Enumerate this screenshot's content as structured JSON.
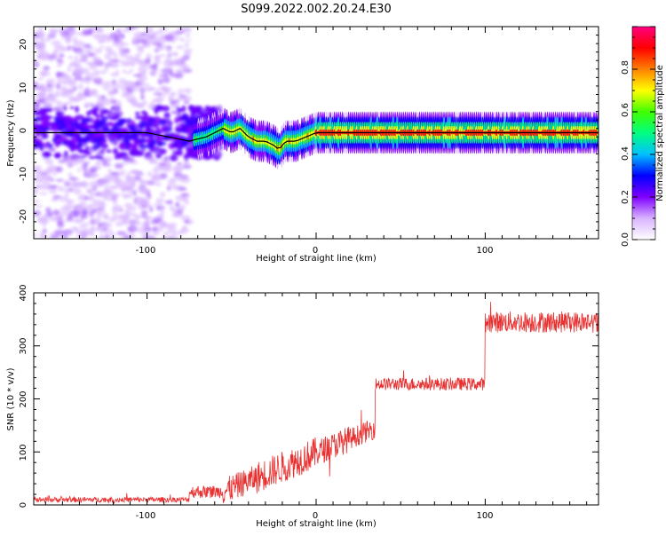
{
  "title": "S099.2022.002.20.24.E30",
  "colorbar": {
    "label": "Normalized spectral amplitude",
    "ticks": [
      "0.0",
      "0.2",
      "0.4",
      "0.6",
      "0.8"
    ],
    "colors": [
      "#ffffff",
      "#d9b3ff",
      "#7f00ff",
      "#0000ff",
      "#00c0ff",
      "#00ff80",
      "#40ff00",
      "#ffff00",
      "#ff8000",
      "#ff0000",
      "#ff0080"
    ]
  },
  "chart_data": [
    {
      "type": "heatmap",
      "xlabel": "Height of straight line (km)",
      "ylabel": "Frequency (Hz)",
      "xlim": [
        -167,
        167
      ],
      "ylim": [
        -25,
        25
      ],
      "xticks": [
        "-100",
        "0",
        "100"
      ],
      "yticks": [
        "20",
        "10",
        "0",
        "-10",
        "-20"
      ],
      "clim": [
        0,
        1
      ],
      "ridge": [
        [
          -167,
          0
        ],
        [
          -100,
          0
        ],
        [
          -75,
          -2
        ],
        [
          -65,
          -1
        ],
        [
          -60,
          0
        ],
        [
          -55,
          1
        ],
        [
          -50,
          0
        ],
        [
          -45,
          1
        ],
        [
          -40,
          -1
        ],
        [
          -35,
          -2
        ],
        [
          -30,
          -2
        ],
        [
          -25,
          -3
        ],
        [
          -22,
          -4
        ],
        [
          -18,
          -2
        ],
        [
          -12,
          -2
        ],
        [
          -6,
          -1
        ],
        [
          0,
          0
        ],
        [
          10,
          0
        ],
        [
          50,
          0
        ],
        [
          100,
          0
        ],
        [
          167,
          0
        ]
      ]
    },
    {
      "type": "line",
      "xlabel": "Height of straight line (km)",
      "ylabel": "SNR (10 * v/v)",
      "xlim": [
        -167,
        167
      ],
      "ylim": [
        0,
        400
      ],
      "xticks": [
        "-100",
        "0",
        "100"
      ],
      "yticks": [
        "400",
        "300",
        "200",
        "100",
        "0"
      ],
      "color": "#e83030",
      "segments": [
        {
          "x0": -167,
          "x1": -75,
          "mean": 10,
          "noise": 5
        },
        {
          "x0": -75,
          "x1": -55,
          "mean": 25,
          "noise": 12
        },
        {
          "x0": -55,
          "x1": -35,
          "mean": 45,
          "noise": 25
        },
        {
          "x0": -35,
          "x1": 0,
          "mean": 90,
          "noise": 30
        },
        {
          "x0": 0,
          "x1": 20,
          "mean": 130,
          "noise": 25
        },
        {
          "x0": 20,
          "x1": 35,
          "mean": 135,
          "noise": 20
        },
        {
          "x0": 35,
          "x1": 100,
          "mean": 228,
          "noise": 12
        },
        {
          "x0": 100,
          "x1": 167,
          "mean": 345,
          "noise": 20
        }
      ]
    }
  ]
}
